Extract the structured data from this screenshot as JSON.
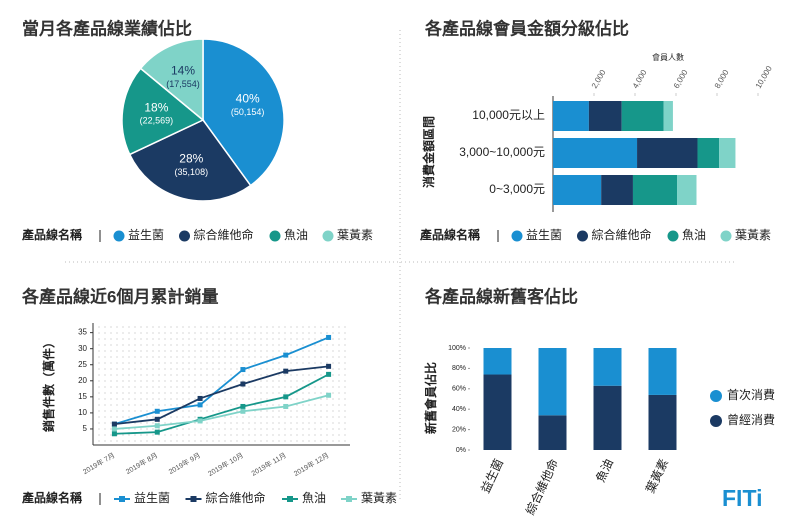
{
  "chart_data": [
    {
      "type": "pie",
      "title": "當月各產品線業績佔比",
      "legend_title": "產品線名稱",
      "categories": [
        "益生菌",
        "綜合維他命",
        "魚油",
        "葉黃素"
      ],
      "values": [
        40,
        28,
        18,
        14
      ],
      "value_labels": [
        "40%",
        "28%",
        "18%",
        "14%"
      ],
      "amounts": [
        50154,
        35108,
        22569,
        17554
      ],
      "amount_labels": [
        "(50,154)",
        "(35,108)",
        "(22,569)",
        "(17,554)"
      ],
      "colors": [
        "#1a8fd1",
        "#1b3a63",
        "#16978a",
        "#7fd3c8"
      ]
    },
    {
      "type": "stacked_barh",
      "title": "各產品線會員金額分級佔比",
      "xlabel": "會員人數",
      "ylabel": "消費金額區間",
      "legend_title": "產品線名稱",
      "categories": [
        "10,000元以上",
        "3,000~10,000元",
        "0~3,000元"
      ],
      "series": [
        {
          "name": "益生菌",
          "color": "#1a8fd1",
          "values": [
            1750,
            4100,
            2350
          ]
        },
        {
          "name": "綜合維他命",
          "color": "#1b3a63",
          "values": [
            1600,
            2950,
            1550
          ]
        },
        {
          "name": "魚油",
          "color": "#16978a",
          "values": [
            2050,
            1050,
            2150
          ]
        },
        {
          "name": "葉黃素",
          "color": "#7fd3c8",
          "values": [
            450,
            800,
            950
          ]
        }
      ],
      "xlim": [
        0,
        10000
      ],
      "xticks": [
        {
          "value": 2000,
          "label": "2,000"
        },
        {
          "value": 4000,
          "label": "4,000"
        },
        {
          "value": 6000,
          "label": "6,000"
        },
        {
          "value": 8000,
          "label": "8,000"
        },
        {
          "value": 10000,
          "label": "10,000"
        }
      ]
    },
    {
      "type": "line",
      "title": "各產品線近6個月累計銷量",
      "ylabel": "銷售件數（萬件）",
      "legend_title": "產品線名稱",
      "categories": [
        "2019年 7月",
        "2019年 8月",
        "2019年 9月",
        "2019年 10月",
        "2019年 11月",
        "2019年 12月"
      ],
      "series": [
        {
          "name": "益生菌",
          "color": "#1a8fd1",
          "values": [
            6.5,
            10.5,
            12.5,
            23.5,
            28,
            33.5
          ]
        },
        {
          "name": "綜合維他命",
          "color": "#1b3a63",
          "values": [
            6.5,
            8,
            14.5,
            19,
            23,
            24.5
          ]
        },
        {
          "name": "魚油",
          "color": "#16978a",
          "values": [
            3.5,
            4,
            8,
            12,
            15,
            22
          ]
        },
        {
          "name": "葉黃素",
          "color": "#7fd3c8",
          "values": [
            5,
            6,
            7.5,
            10.5,
            12,
            15.5
          ]
        }
      ],
      "ylim": [
        0,
        38
      ],
      "yticks": [
        5,
        10,
        15,
        20,
        25,
        30,
        35
      ],
      "grid": true
    },
    {
      "type": "stacked_bar",
      "title": "各產品線新舊客佔比",
      "ylabel": "新舊會員佔比",
      "categories": [
        "益生菌",
        "綜合維他命",
        "魚油",
        "葉黃素"
      ],
      "series": [
        {
          "name": "首次消費",
          "color": "#1a8fd1",
          "values": [
            26,
            66,
            37,
            46
          ]
        },
        {
          "name": "曾經消費",
          "color": "#1b3a63",
          "values": [
            74,
            34,
            63,
            54
          ]
        }
      ],
      "ylim": [
        0,
        100
      ],
      "yticks": [
        {
          "value": 0,
          "label": "0%"
        },
        {
          "value": 20,
          "label": "20%"
        },
        {
          "value": 40,
          "label": "40%"
        },
        {
          "value": 60,
          "label": "60%"
        },
        {
          "value": 80,
          "label": "80%"
        },
        {
          "value": 100,
          "label": "100%"
        }
      ]
    }
  ],
  "logo": "FITi"
}
